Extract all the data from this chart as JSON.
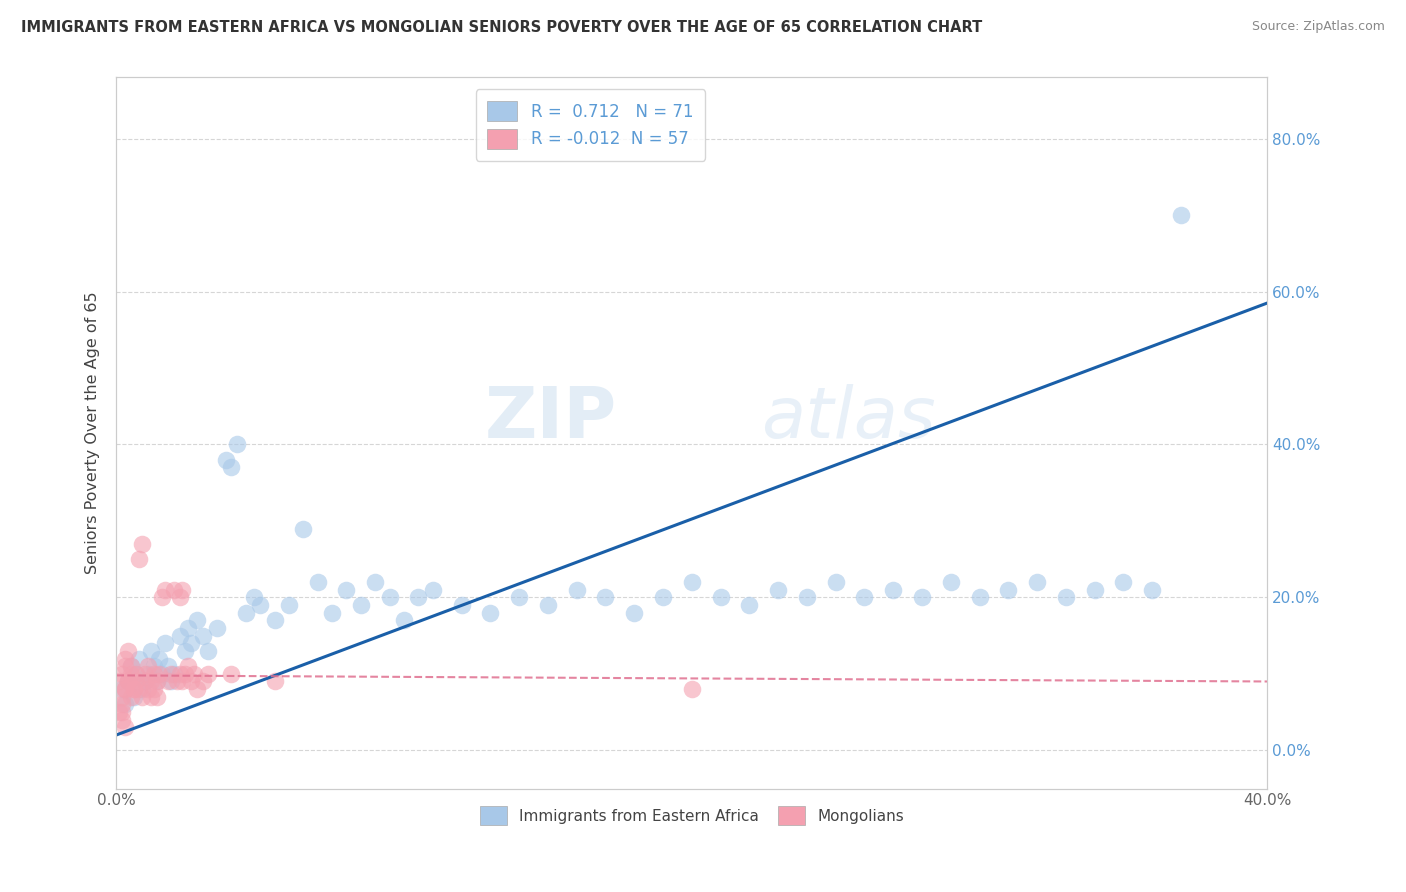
{
  "title": "IMMIGRANTS FROM EASTERN AFRICA VS MONGOLIAN SENIORS POVERTY OVER THE AGE OF 65 CORRELATION CHART",
  "source": "Source: ZipAtlas.com",
  "ylabel": "Seniors Poverty Over the Age of 65",
  "xlim": [
    0.0,
    0.4
  ],
  "ylim": [
    -0.05,
    0.88
  ],
  "yticks": [
    0.0,
    0.2,
    0.4,
    0.6,
    0.8
  ],
  "xticks": [
    0.0,
    0.1,
    0.2,
    0.3,
    0.4
  ],
  "ytick_labels_right": [
    "0.0%",
    "20.0%",
    "40.0%",
    "60.0%",
    "80.0%"
  ],
  "watermark_zip": "ZIP",
  "watermark_atlas": "atlas",
  "color_blue": "#a8c8e8",
  "color_pink": "#f4a0b0",
  "line_blue": "#1a5fa8",
  "line_pink": "#e07090",
  "blue_line_x0": 0.0,
  "blue_line_y0": 0.02,
  "blue_line_x1": 0.4,
  "blue_line_y1": 0.585,
  "pink_line_x0": 0.0,
  "pink_line_y0": 0.098,
  "pink_line_x1": 0.4,
  "pink_line_y1": 0.09,
  "blue_scatter_x": [
    0.002,
    0.003,
    0.004,
    0.005,
    0.006,
    0.007,
    0.008,
    0.009,
    0.01,
    0.011,
    0.012,
    0.013,
    0.014,
    0.015,
    0.016,
    0.017,
    0.018,
    0.019,
    0.02,
    0.022,
    0.024,
    0.025,
    0.026,
    0.028,
    0.03,
    0.032,
    0.035,
    0.038,
    0.04,
    0.042,
    0.045,
    0.048,
    0.05,
    0.055,
    0.06,
    0.065,
    0.07,
    0.075,
    0.08,
    0.085,
    0.09,
    0.095,
    0.1,
    0.105,
    0.11,
    0.12,
    0.13,
    0.14,
    0.15,
    0.16,
    0.17,
    0.18,
    0.19,
    0.2,
    0.21,
    0.22,
    0.23,
    0.24,
    0.25,
    0.26,
    0.27,
    0.28,
    0.29,
    0.3,
    0.31,
    0.32,
    0.33,
    0.34,
    0.35,
    0.36,
    0.37
  ],
  "blue_scatter_y": [
    0.08,
    0.06,
    0.09,
    0.11,
    0.07,
    0.1,
    0.12,
    0.08,
    0.09,
    0.1,
    0.13,
    0.11,
    0.09,
    0.12,
    0.1,
    0.14,
    0.11,
    0.09,
    0.1,
    0.15,
    0.13,
    0.16,
    0.14,
    0.17,
    0.15,
    0.13,
    0.16,
    0.38,
    0.37,
    0.4,
    0.18,
    0.2,
    0.19,
    0.17,
    0.19,
    0.29,
    0.22,
    0.18,
    0.21,
    0.19,
    0.22,
    0.2,
    0.17,
    0.2,
    0.21,
    0.19,
    0.18,
    0.2,
    0.19,
    0.21,
    0.2,
    0.18,
    0.2,
    0.22,
    0.2,
    0.19,
    0.21,
    0.2,
    0.22,
    0.2,
    0.21,
    0.2,
    0.22,
    0.2,
    0.21,
    0.22,
    0.2,
    0.21,
    0.22,
    0.21,
    0.7
  ],
  "pink_scatter_x": [
    0.001,
    0.002,
    0.003,
    0.004,
    0.005,
    0.006,
    0.007,
    0.008,
    0.009,
    0.01,
    0.011,
    0.012,
    0.013,
    0.014,
    0.015,
    0.016,
    0.017,
    0.018,
    0.019,
    0.02,
    0.021,
    0.022,
    0.023,
    0.024,
    0.025,
    0.026,
    0.027,
    0.028,
    0.03,
    0.032,
    0.003,
    0.004,
    0.005,
    0.006,
    0.007,
    0.008,
    0.009,
    0.01,
    0.011,
    0.012,
    0.013,
    0.014,
    0.003,
    0.004,
    0.005,
    0.002,
    0.002,
    0.003,
    0.002,
    0.001,
    0.002,
    0.003,
    0.022,
    0.023,
    0.04,
    0.055,
    0.2
  ],
  "pink_scatter_y": [
    0.09,
    0.1,
    0.11,
    0.09,
    0.1,
    0.08,
    0.09,
    0.25,
    0.27,
    0.1,
    0.11,
    0.09,
    0.1,
    0.09,
    0.1,
    0.2,
    0.21,
    0.09,
    0.1,
    0.21,
    0.09,
    0.1,
    0.09,
    0.1,
    0.11,
    0.09,
    0.1,
    0.08,
    0.09,
    0.1,
    0.08,
    0.09,
    0.07,
    0.08,
    0.1,
    0.08,
    0.07,
    0.09,
    0.08,
    0.07,
    0.08,
    0.07,
    0.12,
    0.13,
    0.11,
    0.05,
    0.04,
    0.03,
    0.06,
    0.05,
    0.07,
    0.08,
    0.2,
    0.21,
    0.1,
    0.09,
    0.08
  ]
}
